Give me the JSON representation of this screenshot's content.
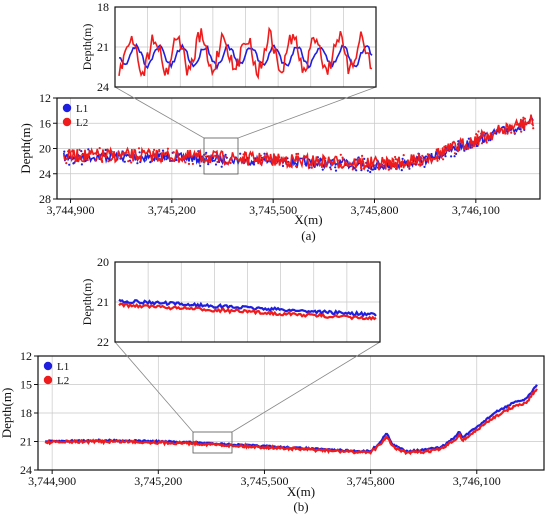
{
  "chart_data": [
    {
      "id": "a",
      "type": "line",
      "caption": "(a)",
      "xlabel": "X(m)",
      "ylabel": "Depth(m)",
      "xlim": [
        3744860,
        3746290
      ],
      "ylim": [
        28,
        12
      ],
      "yticks": [
        12,
        16,
        20,
        24,
        28
      ],
      "xticks": [
        3744900,
        3745200,
        3745500,
        3745800,
        3746100
      ],
      "xtick_labels": [
        "3,744,900",
        "3,745,200",
        "3,745,500",
        "3,745,800",
        "3,746,100"
      ],
      "legend": {
        "placement": "top-left",
        "entries": [
          "L1",
          "L2"
        ]
      },
      "series": [
        {
          "name": "L1",
          "color": "#1f1fe0",
          "x": [
            3744880,
            3745000,
            3745100,
            3745200,
            3745300,
            3745400,
            3745500,
            3745600,
            3745700,
            3745800,
            3745880,
            3745950,
            3746000,
            3746050,
            3746100,
            3746150,
            3746200,
            3746270
          ],
          "y": [
            21.4,
            21.3,
            21.3,
            21.4,
            21.6,
            21.8,
            22.0,
            22.2,
            22.4,
            22.6,
            22.5,
            21.8,
            20.8,
            19.8,
            18.8,
            17.8,
            16.9,
            15.8
          ]
        },
        {
          "name": "L2",
          "color": "#ee1c1c",
          "x": [
            3744880,
            3745000,
            3745100,
            3745200,
            3745300,
            3745400,
            3745500,
            3745600,
            3745700,
            3745800,
            3745880,
            3745950,
            3746000,
            3746050,
            3746100,
            3746150,
            3746200,
            3746270
          ],
          "y": [
            21.2,
            21.1,
            21.1,
            21.2,
            21.4,
            21.6,
            21.8,
            22.0,
            22.2,
            22.4,
            22.3,
            21.6,
            20.6,
            19.6,
            18.6,
            17.6,
            16.7,
            15.6
          ]
        }
      ],
      "inset": {
        "ylim": [
          24,
          18
        ],
        "yticks": [
          18,
          21,
          24
        ],
        "ylabel": "Depth(m)",
        "xlim": [
          3745290,
          3745380
        ]
      }
    },
    {
      "id": "b",
      "type": "line",
      "caption": "(b)",
      "xlabel": "X(m)",
      "ylabel": "Depth(m)",
      "xlim": [
        3744860,
        3746290
      ],
      "ylim": [
        24,
        12
      ],
      "yticks": [
        12,
        15,
        18,
        21,
        24
      ],
      "xticks": [
        3744900,
        3745200,
        3745500,
        3745800,
        3746100
      ],
      "xtick_labels": [
        "3,744,900",
        "3,745,200",
        "3,745,500",
        "3,745,800",
        "3,746,100"
      ],
      "legend": {
        "placement": "top-left",
        "entries": [
          "L1",
          "L2"
        ]
      },
      "series": [
        {
          "name": "L1",
          "color": "#1f1fe0",
          "x": [
            3744880,
            3745000,
            3745100,
            3745200,
            3745300,
            3745400,
            3745500,
            3745600,
            3745700,
            3745750,
            3745800,
            3745830,
            3745845,
            3745860,
            3745900,
            3745950,
            3746000,
            3746040,
            3746050,
            3746060,
            3746100,
            3746150,
            3746200,
            3746240,
            3746270
          ],
          "y": [
            21.0,
            20.9,
            20.9,
            21.0,
            21.1,
            21.3,
            21.5,
            21.7,
            21.9,
            22.0,
            22.0,
            21.0,
            20.0,
            21.3,
            22.0,
            21.9,
            21.6,
            20.5,
            19.9,
            20.6,
            19.5,
            18.0,
            17.0,
            16.5,
            15.0
          ]
        },
        {
          "name": "L2",
          "color": "#ee1c1c",
          "x": [
            3744880,
            3745000,
            3745100,
            3745200,
            3745300,
            3745400,
            3745500,
            3745600,
            3745700,
            3745750,
            3745800,
            3745830,
            3745845,
            3745860,
            3745900,
            3745950,
            3746000,
            3746040,
            3746050,
            3746060,
            3746100,
            3746150,
            3746200,
            3746240,
            3746270
          ],
          "y": [
            21.1,
            21.0,
            21.0,
            21.1,
            21.2,
            21.4,
            21.6,
            21.8,
            22.0,
            22.1,
            22.1,
            21.3,
            20.4,
            21.5,
            22.2,
            22.1,
            21.8,
            20.8,
            20.2,
            20.9,
            19.8,
            18.4,
            17.4,
            16.9,
            15.4
          ]
        }
      ],
      "inset": {
        "ylim": [
          22,
          20
        ],
        "yticks": [
          20,
          21,
          22
        ],
        "ylabel": "Depth(m)",
        "xlim": [
          3745290,
          3745380
        ]
      }
    }
  ]
}
